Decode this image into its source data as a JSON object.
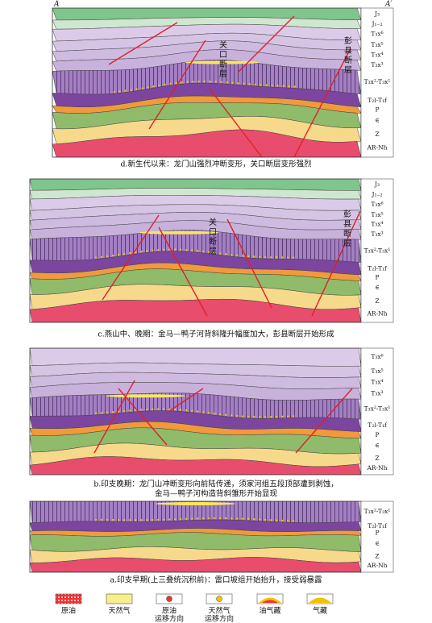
{
  "panels": [
    {
      "id": "d",
      "section_ends": [
        "A",
        "A′"
      ],
      "labels": [
        "J₃",
        "J₁₋₂",
        "T₃x⁶",
        "T₃x⁵",
        "T₃x⁴",
        "T₃x³",
        "T₃x²-T₃x¹",
        "T₂l-T₁f",
        "P",
        "∈",
        "Z",
        "AR-Nh"
      ],
      "fault_labels": [
        "关口断层",
        "彭县断层"
      ],
      "caption": [
        "d.新生代以来：龙门山强烈冲断变形，关口断层变形强烈"
      ]
    },
    {
      "id": "c",
      "labels": [
        "J₃",
        "J₁₋₂",
        "T₃x⁶",
        "T₃x⁵",
        "T₃x⁴",
        "T₃x³",
        "T₃x²-T₃x¹",
        "T₂l-T₁f",
        "P",
        "∈",
        "Z",
        "AR-Nh"
      ],
      "fault_labels": [
        "关口断层",
        "彭县断层"
      ],
      "caption": [
        "c.燕山中、晚期：金马—鸭子河背斜隆升幅度加大，彭县断层开始形成"
      ]
    },
    {
      "id": "b",
      "labels": [
        "T₃x⁶",
        "T₃x⁵",
        "T₃x⁴",
        "T₃x³",
        "T₃x²-T₃x¹",
        "T₂l-T₁f",
        "P",
        "∈",
        "Z",
        "AR-Nh"
      ],
      "caption": [
        "b.印支晚期：龙门山冲断变形向前陆传递，须家河组五段顶部遭到剥蚀，",
        "金马—鸭子河构造背斜雏形开始显现"
      ]
    },
    {
      "id": "a",
      "labels": [
        "T₃x²-T₃x¹",
        "T₂l-T₁f",
        "P",
        "∈",
        "Z",
        "AR-Nh"
      ],
      "caption": [
        "a.印支早期(上三叠统沉积前)：雷口坡组开始抬升，接受弱暴露"
      ]
    }
  ],
  "legend": [
    [
      "原油"
    ],
    [
      "天然气"
    ],
    [
      "原油",
      "运移方向"
    ],
    [
      "天然气",
      "运移方向"
    ],
    [
      "油气藏"
    ],
    [
      "气藏"
    ]
  ]
}
